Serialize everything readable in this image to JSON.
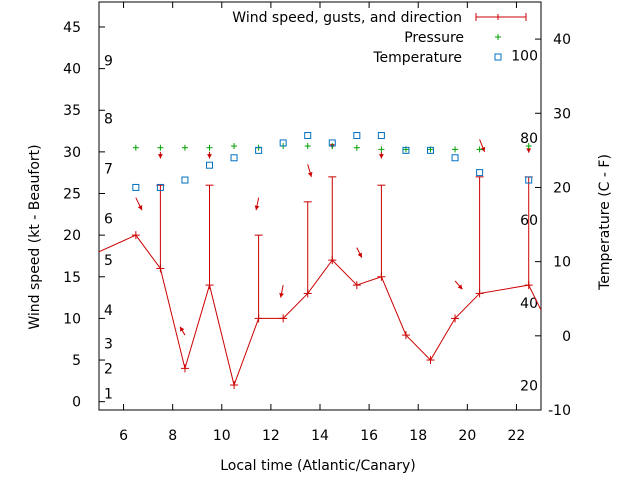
{
  "chart_data": {
    "type": "line",
    "title": "",
    "xlabel": "Local time (Atlantic/Canary)",
    "ylabel": "Wind speed (kt - Beaufort)",
    "y2label": "Temperature (C - F)",
    "xlim": [
      5,
      23
    ],
    "ylim": [
      -1,
      48
    ],
    "y2lim": [
      -10,
      45
    ],
    "x_ticks": [
      6,
      8,
      10,
      12,
      14,
      16,
      18,
      20,
      22
    ],
    "y_ticks": [
      0,
      5,
      10,
      15,
      20,
      25,
      30,
      35,
      40,
      45
    ],
    "y2_ticks": [
      -10,
      0,
      10,
      20,
      30,
      40
    ],
    "beaufort_labels": [
      {
        "label": "1",
        "y": 1
      },
      {
        "label": "2",
        "y": 4
      },
      {
        "label": "3",
        "y": 7
      },
      {
        "label": "4",
        "y": 11
      },
      {
        "label": "5",
        "y": 17
      },
      {
        "label": "6",
        "y": 22
      },
      {
        "label": "7",
        "y": 28
      },
      {
        "label": "8",
        "y": 34
      },
      {
        "label": "9",
        "y": 41
      }
    ],
    "fahrenheit_labels": [
      {
        "label": "20",
        "y2": -6.7
      },
      {
        "label": "40",
        "y2": 4.4
      },
      {
        "label": "60",
        "y2": 15.6
      },
      {
        "label": "80",
        "y2": 26.7
      },
      {
        "label": "100",
        "y2": 37.8
      }
    ],
    "legend_position": "top-right",
    "series": [
      {
        "name": "Wind speed, gusts, and direction",
        "color": "#cc0000",
        "x": [
          5,
          6.5,
          7.5,
          8.5,
          9.5,
          10.5,
          11.5,
          12.5,
          13.5,
          14.5,
          15.5,
          16.5,
          17.5,
          18.5,
          19.5,
          20.5,
          22.5,
          23
        ],
        "values": [
          18,
          20,
          16,
          4,
          14,
          2,
          10,
          10,
          13,
          17,
          14,
          15,
          8,
          5,
          10,
          13,
          14,
          11
        ],
        "gusts": [
          {
            "x": 7.5,
            "low": 16,
            "high": 26
          },
          {
            "x": 9.5,
            "low": 14,
            "high": 26
          },
          {
            "x": 11.5,
            "low": 10,
            "high": 20
          },
          {
            "x": 13.5,
            "low": 13,
            "high": 24
          },
          {
            "x": 14.5,
            "low": 17,
            "high": 27
          },
          {
            "x": 16.5,
            "low": 15,
            "high": 26
          },
          {
            "x": 20.5,
            "low": 13,
            "high": 27
          },
          {
            "x": 22.5,
            "low": 14,
            "high": 27
          }
        ],
        "direction_arrows": [
          {
            "x": 6.5,
            "y": 24.5,
            "dx": 0.25,
            "dy": -1.5
          },
          {
            "x": 7.5,
            "y": 30.0,
            "dx": 0,
            "dy": -0.8
          },
          {
            "x": 8.5,
            "y": 8.0,
            "dx": -0.2,
            "dy": 1.0
          },
          {
            "x": 9.5,
            "y": 30.0,
            "dx": 0,
            "dy": -0.8
          },
          {
            "x": 11.5,
            "y": 24.5,
            "dx": -0.1,
            "dy": -1.5
          },
          {
            "x": 12.5,
            "y": 14.0,
            "dx": -0.1,
            "dy": -1.5
          },
          {
            "x": 13.5,
            "y": 28.5,
            "dx": 0.15,
            "dy": -1.5
          },
          {
            "x": 14.5,
            "y": 31.0,
            "dx": 0,
            "dy": -0.6
          },
          {
            "x": 15.5,
            "y": 18.5,
            "dx": 0.2,
            "dy": -1.2
          },
          {
            "x": 16.5,
            "y": 30.0,
            "dx": 0,
            "dy": -0.8
          },
          {
            "x": 19.5,
            "y": 14.5,
            "dx": 0.3,
            "dy": -1.0
          },
          {
            "x": 20.5,
            "y": 31.5,
            "dx": 0.2,
            "dy": -1.5
          },
          {
            "x": 22.5,
            "y": 30.5,
            "dx": 0,
            "dy": -0.6
          }
        ]
      },
      {
        "name": "Pressure",
        "color": "#00a000",
        "x": [
          6.5,
          7.5,
          8.5,
          9.5,
          10.5,
          11.5,
          12.5,
          13.5,
          14.5,
          15.5,
          16.5,
          17.5,
          18.5,
          19.5,
          20.5,
          22.5
        ],
        "values": [
          30.5,
          30.5,
          30.5,
          30.5,
          30.7,
          30.5,
          30.7,
          30.7,
          30.7,
          30.5,
          30.3,
          30.3,
          30.3,
          30.3,
          30.3,
          30.7
        ]
      },
      {
        "name": "Temperature",
        "axis": "y2",
        "color": "#0070c0",
        "x": [
          6.5,
          7.5,
          8.5,
          9.5,
          10.5,
          11.5,
          12.5,
          13.5,
          14.5,
          15.5,
          16.5,
          17.5,
          18.5,
          19.5,
          20.5,
          22.5
        ],
        "values": [
          20,
          20,
          21,
          23,
          24,
          25,
          26,
          27,
          26,
          27,
          27,
          25,
          25,
          24,
          22,
          21
        ]
      }
    ]
  }
}
